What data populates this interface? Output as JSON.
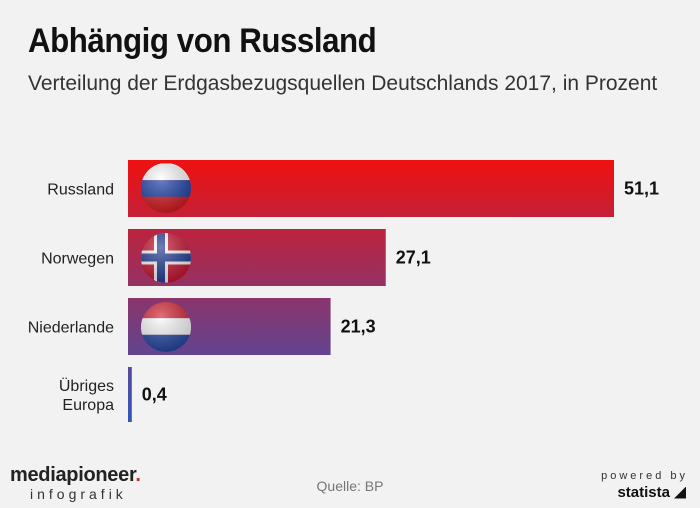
{
  "header": {
    "title": "Abhängig von Russland",
    "subtitle": "Verteilung der Erdgasbezugsquellen Deutschlands 2017, in Prozent"
  },
  "chart_data": {
    "type": "bar",
    "orientation": "horizontal",
    "title": "Abhängig von Russland",
    "subtitle": "Verteilung der Erdgasbezugsquellen Deutschlands 2017, in Prozent",
    "xlabel": "",
    "ylabel": "",
    "xlim": [
      0,
      51.1
    ],
    "grid": false,
    "categories": [
      "Russland",
      "Norwegen",
      "Niederlande",
      "Übriges Europa"
    ],
    "category_lines": [
      [
        "Russland"
      ],
      [
        "Norwegen"
      ],
      [
        "Niederlande"
      ],
      [
        "Übriges",
        "Europa"
      ]
    ],
    "values": [
      51.1,
      27.1,
      21.3,
      0.4
    ],
    "value_labels": [
      "51,1",
      "27,1",
      "21,3",
      "0,4"
    ],
    "flags": [
      "russia-flag",
      "norway-flag",
      "netherlands-flag",
      ""
    ],
    "colors": {
      "top": "#ee1111",
      "bottom": "#3355bb"
    }
  },
  "footer": {
    "brand_main": "mediapioneer",
    "brand_dot": ".",
    "brand_sub": "infografik",
    "source": "Quelle: BP",
    "powered_by": "powered by",
    "statista": "statista"
  }
}
